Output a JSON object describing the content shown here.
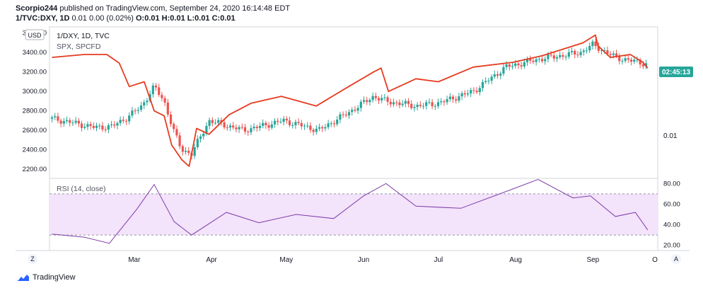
{
  "header": {
    "author": "Scorpio244",
    "published_text": "published on TradingView.com, September 24, 2020 16:14:48 EDT",
    "symbol_line_prefix": "1/TVC:DXY, 1D",
    "symbol_line_change": "0.01 0.00 (0.02%)",
    "symbol_line_ohlc": "O:0.01 H:0.01 L:0.01 C:0.01"
  },
  "legend": {
    "main": "1/DXY, 1D, TVC",
    "overlay": "SPX, SPCFD",
    "currency": "USD",
    "rsi": "RSI (14, close)"
  },
  "badge": {
    "time": "02:45:13"
  },
  "right_label": "0.01",
  "bottom_left_button": "Z",
  "bottom_right_button": "A",
  "bottom_log_button": "O",
  "footer": {
    "brand": "TradingView"
  },
  "colors": {
    "spx": "#e53b1f",
    "up": "#26a69a",
    "down": "#ef5350",
    "rsi_line": "#7e3ea9",
    "rsi_band": "#f3e3fb",
    "badge": "#26a69a"
  },
  "chart_data": [
    {
      "type": "line",
      "name": "SPX, SPCFD",
      "x": [
        "Jan 28",
        "Feb 10",
        "Feb 19",
        "Feb 24",
        "Feb 28",
        "Mar 5",
        "Mar 9",
        "Mar 13",
        "Mar 16",
        "Mar 20",
        "Mar 23",
        "Mar 26",
        "Mar 31",
        "Apr 8",
        "Apr 17",
        "Apr 29",
        "May 13",
        "May 26",
        "Jun 5",
        "Jun 8",
        "Jun 11",
        "Jun 22",
        "Jul 1",
        "Jul 15",
        "Jul 31",
        "Aug 12",
        "Aug 28",
        "Sep 2",
        "Sep 3",
        "Sep 8",
        "Sep 16",
        "Sep 21",
        "Sep 23"
      ],
      "y": [
        3350,
        3380,
        3380,
        3290,
        3050,
        3100,
        2800,
        2750,
        2450,
        2300,
        2230,
        2620,
        2560,
        2760,
        2880,
        2950,
        2850,
        3050,
        3200,
        3240,
        3000,
        3130,
        3100,
        3250,
        3300,
        3370,
        3500,
        3580,
        3470,
        3350,
        3380,
        3300,
        3240
      ],
      "ylim": [
        2150,
        3620
      ],
      "yticks": [
        "2200.00",
        "2400.00",
        "2600.00",
        "2800.00",
        "3000.00",
        "3200.00",
        "3400.00",
        "3600.00"
      ]
    },
    {
      "type": "candlestick",
      "name": "1/DXY, 1D, TVC",
      "x": [
        "Jan 28",
        "Feb 5",
        "Feb 14",
        "Feb 21",
        "Feb 27",
        "Mar 4",
        "Mar 9",
        "Mar 13",
        "Mar 17",
        "Mar 20",
        "Mar 24",
        "Mar 31",
        "Apr 14",
        "Apr 30",
        "May 14",
        "May 27",
        "Jun 5",
        "Jun 10",
        "Jun 22",
        "Jul 1",
        "Jul 15",
        "Jul 28",
        "Aug 10",
        "Aug 27",
        "Sep 1",
        "Sep 10",
        "Sep 23"
      ],
      "close": [
        2720,
        2680,
        2630,
        2640,
        2730,
        2850,
        3050,
        2900,
        2580,
        2400,
        2360,
        2700,
        2600,
        2700,
        2600,
        2800,
        2950,
        2900,
        2850,
        2880,
        3000,
        3250,
        3330,
        3400,
        3480,
        3350,
        3280
      ],
      "right_axis_label": "0.01"
    },
    {
      "type": "line",
      "name": "RSI (14, close)",
      "x": [
        "Jan 28",
        "Feb 10",
        "Feb 20",
        "Mar 2",
        "Mar 9",
        "Mar 17",
        "Mar 24",
        "Apr 7",
        "Apr 20",
        "May 5",
        "May 20",
        "Jun 1",
        "Jun 10",
        "Jun 22",
        "Jul 10",
        "Jul 29",
        "Aug 10",
        "Aug 24",
        "Aug 31",
        "Sep 10",
        "Sep 18",
        "Sep 23"
      ],
      "y": [
        31,
        28,
        22,
        55,
        79,
        43,
        30,
        52,
        42,
        50,
        46,
        68,
        80,
        58,
        56,
        73,
        84,
        66,
        68,
        48,
        52,
        35
      ],
      "ylim": [
        15,
        85
      ],
      "yticks": [
        "20.00",
        "40.00",
        "60.00",
        "80.00"
      ],
      "band": [
        30,
        70
      ]
    }
  ],
  "x_axis": {
    "labels": [
      "Mar",
      "Apr",
      "May",
      "Jun",
      "Jul",
      "Aug",
      "Sep"
    ]
  }
}
